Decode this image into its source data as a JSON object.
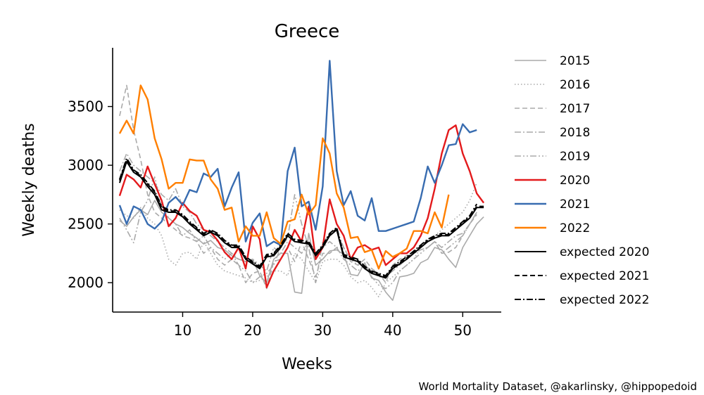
{
  "chart_data": {
    "type": "line",
    "title": "Greece",
    "xlabel": "Weeks",
    "ylabel": "Weekly deaths",
    "xlim": [
      0,
      55.5
    ],
    "ylim": [
      1750,
      4000
    ],
    "xticks": [
      10,
      20,
      30,
      40,
      50
    ],
    "yticks": [
      2000,
      2500,
      3000,
      3500
    ],
    "grid": false,
    "legend_position": "right, outside",
    "credit": "World Mortality Dataset, @akarlinsky, @hippopedoid",
    "series": [
      {
        "name": "2015",
        "color": "#aaaaaa",
        "style": "solid",
        "width": 1.6,
        "x": [
          1,
          2,
          3,
          4,
          5,
          6,
          7,
          8,
          9,
          10,
          11,
          12,
          13,
          14,
          15,
          16,
          17,
          18,
          19,
          20,
          21,
          22,
          23,
          24,
          25,
          26,
          27,
          28,
          29,
          30,
          31,
          32,
          33,
          34,
          35,
          36,
          37,
          38,
          39,
          40,
          41,
          42,
          43,
          44,
          45,
          46,
          47,
          48,
          49,
          50,
          51,
          52,
          53
        ],
        "y": [
          2530,
          2480,
          2560,
          2620,
          2580,
          2700,
          2600,
          2550,
          2500,
          2470,
          2420,
          2380,
          2330,
          2360,
          2300,
          2280,
          2230,
          2200,
          2180,
          2200,
          2060,
          2000,
          2200,
          2250,
          2250,
          1920,
          1910,
          2420,
          2150,
          2200,
          2270,
          2280,
          2240,
          2070,
          2060,
          2170,
          2040,
          2020,
          1920,
          1850,
          2050,
          2060,
          2080,
          2170,
          2200,
          2300,
          2280,
          2200,
          2130,
          2300,
          2400,
          2500,
          2560
        ]
      },
      {
        "name": "2016",
        "color": "#aaaaaa",
        "style": "dotted",
        "width": 1.6,
        "x": [
          1,
          2,
          3,
          4,
          5,
          6,
          7,
          8,
          9,
          10,
          11,
          12,
          13,
          14,
          15,
          16,
          17,
          18,
          19,
          20,
          21,
          22,
          23,
          24,
          25,
          26,
          27,
          28,
          29,
          30,
          31,
          32,
          33,
          34,
          35,
          36,
          37,
          38,
          39,
          40,
          41,
          42,
          43,
          44,
          45,
          46,
          47,
          48,
          49,
          50,
          51,
          52
        ],
        "y": [
          2620,
          2570,
          2550,
          2640,
          2550,
          2500,
          2400,
          2200,
          2150,
          2250,
          2260,
          2200,
          2350,
          2250,
          2150,
          2100,
          2080,
          2060,
          2040,
          2000,
          2020,
          2050,
          2100,
          2100,
          2060,
          2250,
          2200,
          2100,
          2000,
          2180,
          2200,
          2200,
          2150,
          2050,
          2000,
          2020,
          1960,
          1880,
          2000,
          2050,
          2100,
          2150,
          2200,
          2300,
          2350,
          2400,
          2450,
          2500,
          2550,
          2600,
          2700,
          2850
        ]
      },
      {
        "name": "2017",
        "color": "#aaaaaa",
        "style": "dashed",
        "width": 1.6,
        "x": [
          1,
          2,
          3,
          4,
          5,
          6,
          7,
          8,
          9,
          10,
          11,
          12,
          13,
          14,
          15,
          16,
          17,
          18,
          19,
          20,
          21,
          22,
          23,
          24,
          25,
          26,
          27,
          28,
          29,
          30,
          31,
          32,
          33,
          34,
          35,
          36,
          37,
          38,
          39,
          40,
          41,
          42,
          43,
          44,
          45,
          46,
          47,
          48,
          49,
          50,
          51,
          52
        ],
        "y": [
          3420,
          3680,
          3300,
          3050,
          2750,
          2600,
          2550,
          2500,
          2450,
          2400,
          2380,
          2350,
          2250,
          2300,
          2200,
          2150,
          2200,
          2150,
          2000,
          2080,
          2100,
          1950,
          2180,
          2200,
          2300,
          2180,
          2350,
          2200,
          2050,
          2250,
          2250,
          2300,
          2300,
          2180,
          2150,
          2200,
          2120,
          2080,
          2000,
          2150,
          2200,
          2230,
          2250,
          2280,
          2300,
          2350,
          2250,
          2260,
          2300,
          2400,
          2500,
          2580
        ]
      },
      {
        "name": "2018",
        "color": "#aaaaaa",
        "style": "dashdot",
        "width": 1.6,
        "x": [
          1,
          2,
          3,
          4,
          5,
          6,
          7,
          8,
          9,
          10,
          11,
          12,
          13,
          14,
          15,
          16,
          17,
          18,
          19,
          20,
          21,
          22,
          23,
          24,
          25,
          26,
          27,
          28,
          29,
          30,
          31,
          32,
          33,
          34,
          35,
          36,
          37,
          38,
          39,
          40,
          41,
          42,
          43,
          44,
          45,
          46,
          47,
          48,
          49,
          50,
          51,
          52
        ],
        "y": [
          2950,
          3100,
          3000,
          2950,
          2900,
          2850,
          2750,
          2700,
          2800,
          2650,
          2600,
          2500,
          2450,
          2400,
          2350,
          2300,
          2250,
          2200,
          2180,
          2200,
          2150,
          2100,
          2300,
          2250,
          2350,
          2300,
          2250,
          2350,
          2250,
          2300,
          2350,
          2300,
          2200,
          2150,
          2100,
          2150,
          2100,
          2050,
          2050,
          2100,
          2150,
          2200,
          2250,
          2280,
          2300,
          2350,
          2300,
          2350,
          2400,
          2420,
          2500,
          2600
        ]
      },
      {
        "name": "2019",
        "color": "#aaaaaa",
        "style": "dashdotdot",
        "width": 1.6,
        "x": [
          1,
          2,
          3,
          4,
          5,
          6,
          7,
          8,
          9,
          10,
          11,
          12,
          13,
          14,
          15,
          16,
          17,
          18,
          19,
          20,
          21,
          22,
          23,
          24,
          25,
          26,
          27,
          28,
          29,
          30,
          31,
          32,
          33,
          34,
          35,
          36,
          37,
          38,
          39,
          40,
          41,
          42,
          43,
          44,
          45,
          46,
          47,
          48,
          49,
          50,
          51,
          52
        ],
        "y": [
          2550,
          2450,
          2340,
          2600,
          2700,
          2900,
          2650,
          2550,
          2500,
          2400,
          2450,
          2350,
          2400,
          2300,
          2250,
          2200,
          2250,
          2150,
          2100,
          2000,
          2050,
          2080,
          2150,
          2300,
          2380,
          2750,
          2500,
          2300,
          2000,
          2350,
          2400,
          2450,
          2300,
          2200,
          2150,
          2150,
          2050,
          1980,
          1950,
          2000,
          2100,
          2150,
          2200,
          2250,
          2300,
          2350,
          2250,
          2300,
          2350,
          2400,
          2500,
          2600
        ]
      },
      {
        "name": "2020",
        "color": "#e31a1c",
        "style": "solid",
        "width": 2.4,
        "x": [
          1,
          2,
          3,
          4,
          5,
          6,
          7,
          8,
          9,
          10,
          11,
          12,
          13,
          14,
          15,
          16,
          17,
          18,
          19,
          20,
          21,
          22,
          23,
          24,
          25,
          26,
          27,
          28,
          29,
          30,
          31,
          32,
          33,
          34,
          35,
          36,
          37,
          38,
          39,
          40,
          41,
          42,
          43,
          44,
          45,
          46,
          47,
          48,
          49,
          50,
          51,
          52,
          53
        ],
        "y": [
          2740,
          2920,
          2880,
          2810,
          2990,
          2840,
          2700,
          2480,
          2550,
          2680,
          2610,
          2570,
          2450,
          2430,
          2360,
          2260,
          2200,
          2300,
          2120,
          2480,
          2370,
          1960,
          2100,
          2200,
          2300,
          2450,
          2350,
          2650,
          2200,
          2300,
          2710,
          2500,
          2400,
          2200,
          2300,
          2320,
          2280,
          2300,
          2150,
          2200,
          2250,
          2250,
          2300,
          2400,
          2550,
          2800,
          3100,
          3300,
          3340,
          3100,
          2950,
          2760,
          2680
        ]
      },
      {
        "name": "2021",
        "color": "#386cb0",
        "style": "solid",
        "width": 2.4,
        "x": [
          1,
          2,
          3,
          4,
          5,
          6,
          7,
          8,
          9,
          10,
          11,
          12,
          13,
          14,
          15,
          16,
          17,
          18,
          19,
          20,
          21,
          22,
          23,
          24,
          25,
          26,
          27,
          28,
          29,
          30,
          31,
          32,
          33,
          34,
          35,
          36,
          37,
          38,
          39,
          40,
          41,
          42,
          43,
          44,
          45,
          46,
          47,
          48,
          49,
          50,
          51,
          52
        ],
        "y": [
          2660,
          2500,
          2650,
          2620,
          2500,
          2460,
          2520,
          2680,
          2730,
          2660,
          2790,
          2770,
          2930,
          2900,
          2970,
          2650,
          2810,
          2940,
          2350,
          2510,
          2590,
          2310,
          2350,
          2320,
          2950,
          3150,
          2650,
          2690,
          2450,
          2820,
          3890,
          2950,
          2660,
          2780,
          2570,
          2530,
          2720,
          2440,
          2440,
          2460,
          2480,
          2500,
          2520,
          2720,
          2990,
          2850,
          3000,
          3170,
          3180,
          3350,
          3280,
          3300
        ]
      },
      {
        "name": "2022",
        "color": "#ff7f00",
        "style": "solid",
        "width": 2.4,
        "x": [
          1,
          2,
          3,
          4,
          5,
          6,
          7,
          8,
          9,
          10,
          11,
          12,
          13,
          14,
          15,
          16,
          17,
          18,
          19,
          20,
          21,
          22,
          23,
          24,
          25,
          26,
          27,
          28,
          29,
          30,
          31,
          32,
          33,
          34,
          35,
          36,
          37,
          38,
          39,
          40,
          41,
          42,
          43,
          44,
          45,
          46,
          47,
          48
        ],
        "y": [
          3270,
          3380,
          3270,
          3680,
          3560,
          3230,
          3050,
          2800,
          2850,
          2850,
          3050,
          3040,
          3040,
          2880,
          2800,
          2620,
          2640,
          2350,
          2480,
          2400,
          2400,
          2600,
          2380,
          2330,
          2520,
          2540,
          2750,
          2580,
          2660,
          3230,
          3100,
          2760,
          2640,
          2380,
          2390,
          2260,
          2280,
          2120,
          2270,
          2220,
          2250,
          2290,
          2440,
          2440,
          2420,
          2600,
          2470,
          2750
        ]
      },
      {
        "name": "expected 2020",
        "color": "#000000",
        "style": "solid",
        "width": 2.0,
        "x": [
          1,
          2,
          3,
          4,
          5,
          6,
          7,
          8,
          9,
          10,
          11,
          12,
          13,
          14,
          15,
          16,
          17,
          18,
          19,
          20,
          21,
          22,
          23,
          24,
          25,
          26,
          27,
          28,
          29,
          30,
          31,
          32,
          33,
          34,
          35,
          36,
          37,
          38,
          39,
          40,
          41,
          42,
          43,
          44,
          45,
          46,
          47,
          48,
          49,
          50,
          51,
          52,
          53
        ],
        "y": [
          2850,
          3030,
          2940,
          2900,
          2820,
          2750,
          2620,
          2600,
          2600,
          2560,
          2500,
          2450,
          2400,
          2430,
          2400,
          2340,
          2300,
          2300,
          2200,
          2160,
          2120,
          2220,
          2230,
          2300,
          2400,
          2350,
          2340,
          2330,
          2230,
          2300,
          2400,
          2450,
          2220,
          2200,
          2180,
          2120,
          2080,
          2060,
          2040,
          2120,
          2160,
          2200,
          2250,
          2300,
          2350,
          2380,
          2400,
          2400,
          2450,
          2500,
          2550,
          2640,
          2640
        ]
      },
      {
        "name": "expected 2021",
        "color": "#000000",
        "style": "dashed",
        "width": 2.0,
        "x": [
          1,
          2,
          3,
          4,
          5,
          6,
          7,
          8,
          9,
          10,
          11,
          12,
          13,
          14,
          15,
          16,
          17,
          18,
          19,
          20,
          21,
          22,
          23,
          24,
          25,
          26,
          27,
          28,
          29,
          30,
          31,
          32,
          33,
          34,
          35,
          36,
          37,
          38,
          39,
          40,
          41,
          42,
          43,
          44,
          45,
          46,
          47,
          48,
          49,
          50,
          51,
          52,
          53
        ],
        "y": [
          2870,
          3050,
          2950,
          2910,
          2840,
          2770,
          2640,
          2610,
          2610,
          2570,
          2510,
          2460,
          2410,
          2440,
          2410,
          2350,
          2310,
          2310,
          2210,
          2170,
          2130,
          2230,
          2240,
          2310,
          2410,
          2360,
          2350,
          2340,
          2240,
          2310,
          2410,
          2460,
          2230,
          2210,
          2190,
          2130,
          2090,
          2070,
          2050,
          2130,
          2170,
          2210,
          2260,
          2310,
          2360,
          2390,
          2410,
          2410,
          2460,
          2510,
          2560,
          2650,
          2650
        ]
      },
      {
        "name": "expected 2022",
        "color": "#000000",
        "style": "dashdot",
        "width": 2.0,
        "x": [
          1,
          2,
          3,
          4,
          5,
          6,
          7,
          8,
          9,
          10,
          11,
          12,
          13,
          14,
          15,
          16,
          17,
          18,
          19,
          20,
          21,
          22,
          23,
          24,
          25,
          26,
          27,
          28,
          29,
          30,
          31,
          32,
          33,
          34,
          35,
          36,
          37,
          38,
          39,
          40,
          41,
          42,
          43,
          44,
          45,
          46,
          47,
          48,
          49,
          50,
          51,
          52
        ],
        "y": [
          2880,
          3060,
          2960,
          2920,
          2850,
          2780,
          2650,
          2620,
          2620,
          2580,
          2520,
          2470,
          2420,
          2450,
          2420,
          2360,
          2320,
          2320,
          2220,
          2180,
          2140,
          2240,
          2250,
          2320,
          2420,
          2370,
          2360,
          2350,
          2250,
          2320,
          2420,
          2470,
          2240,
          2220,
          2200,
          2140,
          2100,
          2080,
          2060,
          2140,
          2180,
          2220,
          2270,
          2320,
          2370,
          2400,
          2420,
          2420,
          2470,
          2520,
          2570,
          2670
        ]
      }
    ]
  }
}
